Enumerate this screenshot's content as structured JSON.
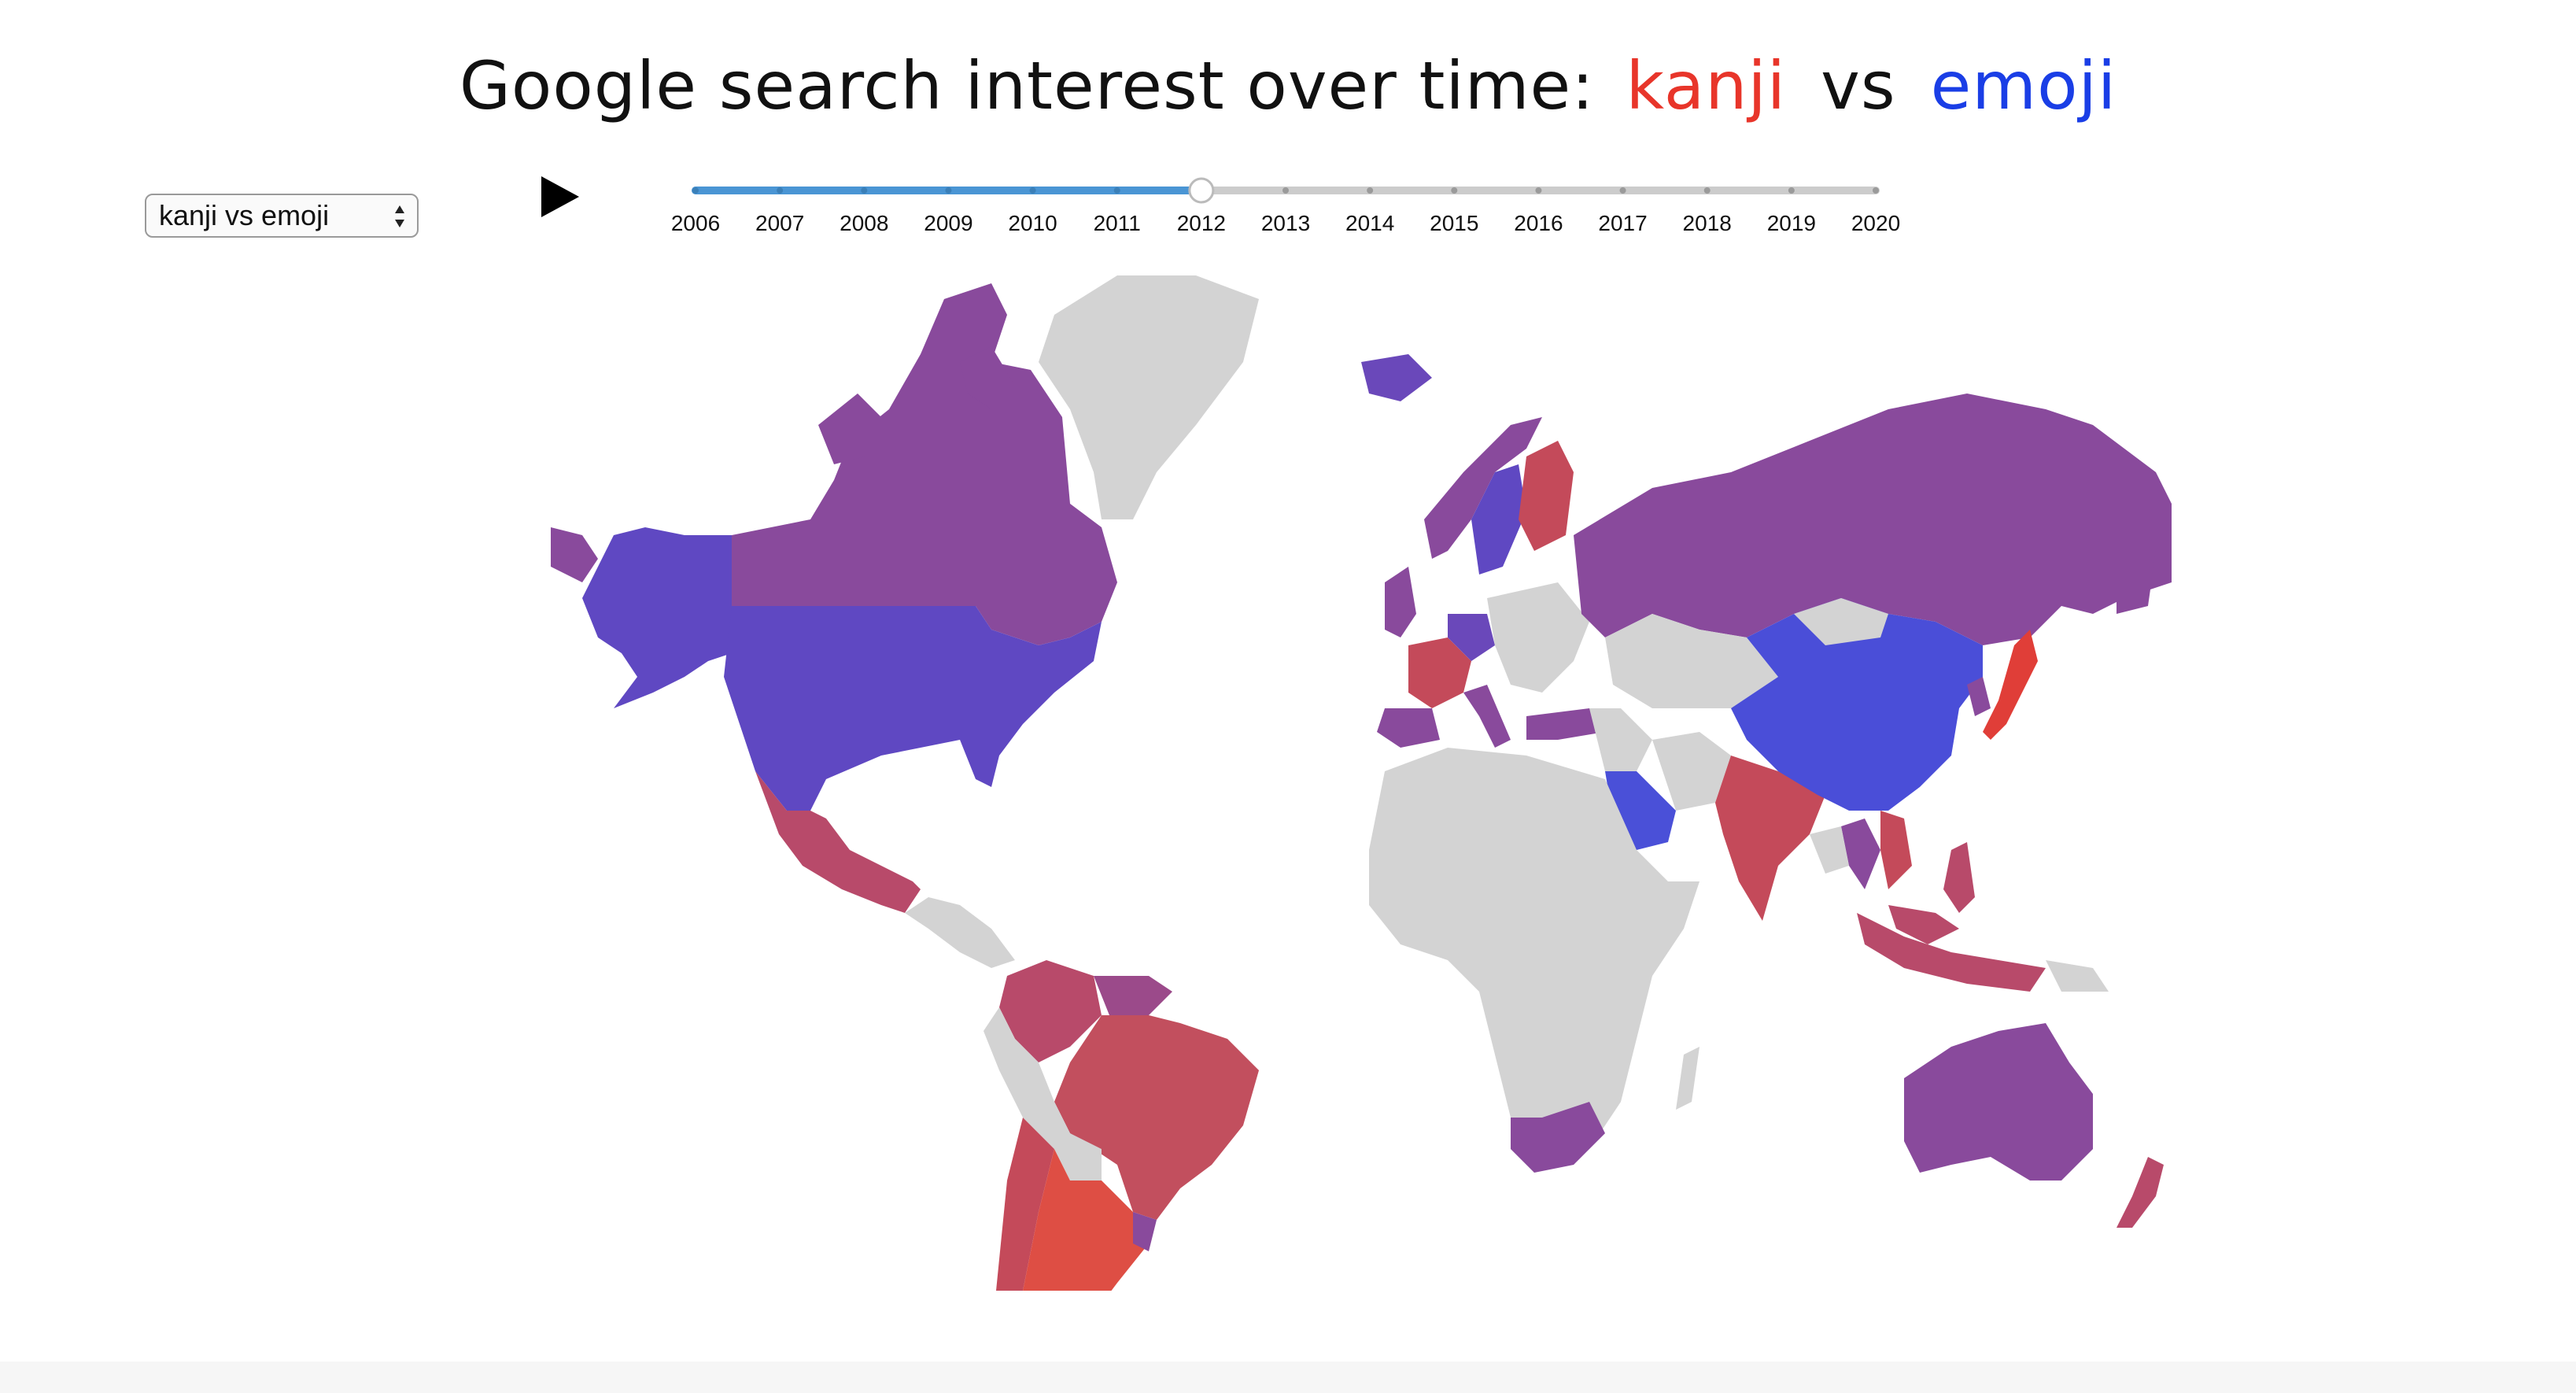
{
  "title": {
    "prefix": "Google search interest over time:",
    "term1": "kanji",
    "vs": "vs",
    "term2": "emoji"
  },
  "colors": {
    "term1": "#e8352a",
    "term2": "#1a3ee6",
    "mixed": "#894a9c",
    "no_data": "#d3d3d3",
    "slider_active": "#4a95d4",
    "slider_track": "#cccccc"
  },
  "dropdown": {
    "selected": "kanji vs emoji"
  },
  "controls": {
    "play_icon": "play-icon"
  },
  "timeline": {
    "years": [
      "2006",
      "2007",
      "2008",
      "2009",
      "2010",
      "2011",
      "2012",
      "2013",
      "2014",
      "2015",
      "2016",
      "2017",
      "2018",
      "2019",
      "2020"
    ],
    "current": "2012"
  },
  "map": {
    "legend_note": "",
    "regions": [
      {
        "name": "Alaska",
        "color": "#5f48c2"
      },
      {
        "name": "Canada",
        "color": "#894a9c"
      },
      {
        "name": "Greenland",
        "color": "#d3d3d3"
      },
      {
        "name": "United States",
        "color": "#5f48c2"
      },
      {
        "name": "Mexico",
        "color": "#b84a6a"
      },
      {
        "name": "Central America",
        "color": "#d3d3d3"
      },
      {
        "name": "Colombia",
        "color": "#b84a6a"
      },
      {
        "name": "Venezuela",
        "color": "#9b4a8a"
      },
      {
        "name": "Brazil",
        "color": "#c24f5e"
      },
      {
        "name": "Peru",
        "color": "#d3d3d3"
      },
      {
        "name": "Chile",
        "color": "#c44a5a"
      },
      {
        "name": "Argentina",
        "color": "#de4e44"
      },
      {
        "name": "Iceland",
        "color": "#6a48ba"
      },
      {
        "name": "Norway",
        "color": "#894a9c"
      },
      {
        "name": "Sweden",
        "color": "#5f48c2"
      },
      {
        "name": "Finland",
        "color": "#c44a5a"
      },
      {
        "name": "United Kingdom",
        "color": "#894a9c"
      },
      {
        "name": "France",
        "color": "#c44a5a"
      },
      {
        "name": "Germany",
        "color": "#6a48ba"
      },
      {
        "name": "Spain",
        "color": "#894a9c"
      },
      {
        "name": "Italy",
        "color": "#894a9c"
      },
      {
        "name": "Russia",
        "color": "#894a9c"
      },
      {
        "name": "Turkey",
        "color": "#894a9c"
      },
      {
        "name": "Kazakhstan",
        "color": "#d3d3d3"
      },
      {
        "name": "China",
        "color": "#4a4ed8"
      },
      {
        "name": "Saudi Arabia",
        "color": "#4a50d8"
      },
      {
        "name": "India",
        "color": "#c44a5a"
      },
      {
        "name": "Thailand",
        "color": "#894a9c"
      },
      {
        "name": "Vietnam",
        "color": "#c44a5a"
      },
      {
        "name": "Japan",
        "color": "#e03e38"
      },
      {
        "name": "Korea",
        "color": "#894a9c"
      },
      {
        "name": "Indonesia",
        "color": "#b84a6a"
      },
      {
        "name": "Philippines",
        "color": "#b84a6a"
      },
      {
        "name": "Africa",
        "color": "#d3d3d3"
      },
      {
        "name": "South Africa",
        "color": "#894a9c"
      },
      {
        "name": "Australia",
        "color": "#894a9c"
      },
      {
        "name": "New Zealand",
        "color": "#b84a6a"
      }
    ]
  }
}
